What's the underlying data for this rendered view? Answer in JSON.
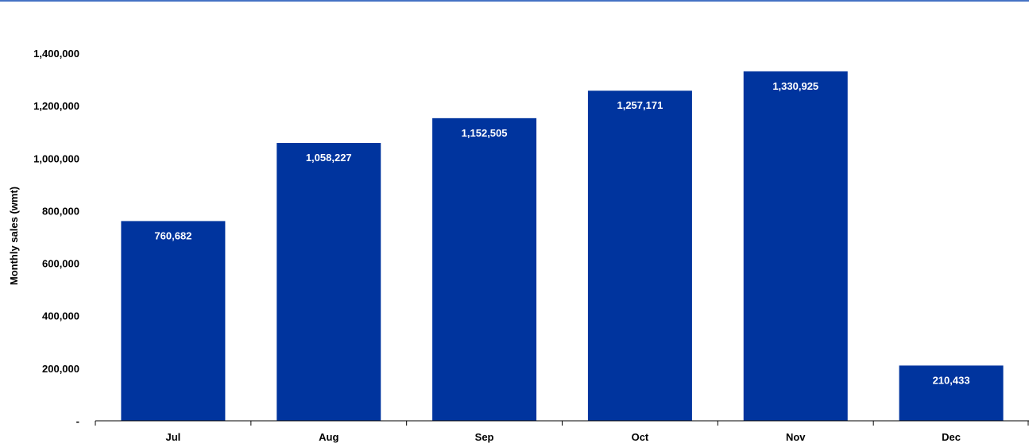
{
  "chart_data": {
    "type": "bar",
    "title": "",
    "xlabel": "",
    "ylabel": "Monthly sales (wmt)",
    "categories": [
      "Jul",
      "Aug",
      "Sep",
      "Oct",
      "Nov",
      "Dec"
    ],
    "values": [
      760682,
      1058227,
      1152505,
      1257171,
      1330925,
      210433
    ],
    "data_labels": [
      "760,682",
      "1,058,227",
      "1,152,505",
      "1,257,171",
      "1,330,925",
      "210,433"
    ],
    "ylim": [
      0,
      1400000
    ],
    "yticks": [
      0,
      200000,
      400000,
      600000,
      800000,
      1000000,
      1200000,
      1400000
    ],
    "ytick_labels": [
      "-",
      "200,000",
      "400,000",
      "600,000",
      "800,000",
      "1,000,000",
      "1,200,000",
      "1,400,000"
    ],
    "grid": false,
    "legend": "none",
    "colors": {
      "bar": "#00349E",
      "top_rule": "#4472C4",
      "axis": "#000000",
      "data_label": "#ffffff"
    }
  }
}
